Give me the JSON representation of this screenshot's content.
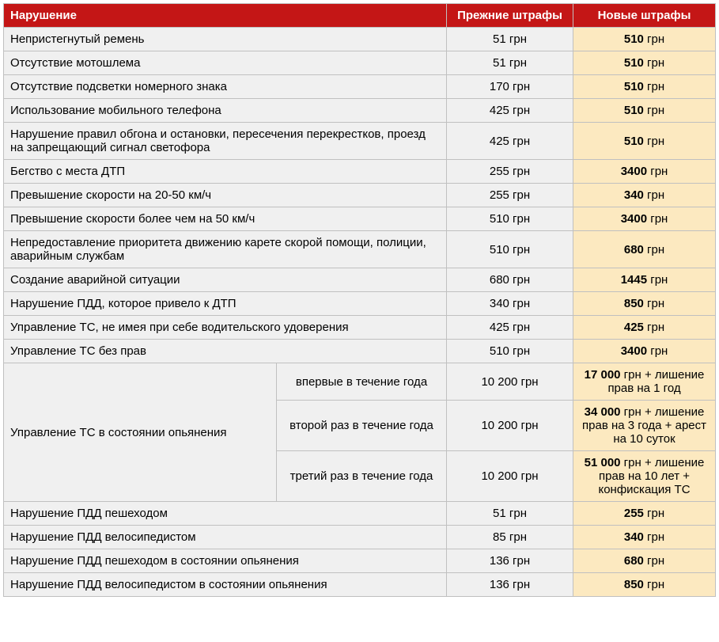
{
  "headers": {
    "violation": "Нарушение",
    "old": "Прежние штрафы",
    "new": "Новые штрафы"
  },
  "currency": "грн",
  "rows_simple": [
    {
      "violation": "Непристегнутый ремень",
      "old": "51",
      "new": "510"
    },
    {
      "violation": "Отсутствие мотошлема",
      "old": "51",
      "new": "510"
    },
    {
      "violation": "Отсутствие подсветки номерного знака",
      "old": "170",
      "new": "510"
    },
    {
      "violation": "Использование мобильного телефона",
      "old": "425",
      "new": "510"
    },
    {
      "violation": "Нарушение правил обгона и остановки, пересечения перекрестков, проезд на запрещающий сигнал светофора",
      "old": "425",
      "new": "510"
    },
    {
      "violation": "Бегство с места ДТП",
      "old": "255",
      "new": "3400"
    },
    {
      "violation": "Превышение скорости на 20-50 км/ч",
      "old": "255",
      "new": "340"
    },
    {
      "violation": "Превышение скорости более чем на 50 км/ч",
      "old": "510",
      "new": "3400"
    },
    {
      "violation": "Непредоставление приоритета движению карете скорой помощи, полиции, аварийным службам",
      "old": "510",
      "new": "680"
    },
    {
      "violation": "Создание аварийной ситуации",
      "old": "680",
      "new": "1445"
    },
    {
      "violation": "Нарушение ПДД, которое привело к ДТП",
      "old": "340",
      "new": "850"
    },
    {
      "violation": "Управление ТС, не имея при себе водительского удоверения",
      "old": "425",
      "new": "425"
    },
    {
      "violation": "Управление ТС без прав",
      "old": "510",
      "new": "3400"
    }
  ],
  "drunk_block": {
    "label": "Управление ТС в состоянии опьянения",
    "rows": [
      {
        "sub": "впервые в течение года",
        "old": "10 200",
        "new_bold": "17 000",
        "new_extra": " грн + лишение прав на 1 год"
      },
      {
        "sub": "второй раз в течение года",
        "old": "10 200",
        "new_bold": "34 000",
        "new_extra": " грн + лишение прав на 3 года + арест на 10 суток"
      },
      {
        "sub": "третий раз в течение года",
        "old": "10 200",
        "new_bold": "51 000",
        "new_extra": " грн + лишение прав на 10 лет + конфискация ТС"
      }
    ]
  },
  "rows_after": [
    {
      "violation": "Нарушение ПДД пешеходом",
      "old": "51",
      "new": "255"
    },
    {
      "violation": "Нарушение ПДД велосипедистом",
      "old": "85",
      "new": "340"
    },
    {
      "violation": "Нарушение ПДД пешеходом в состоянии опьянения",
      "old": "136",
      "new": "680"
    },
    {
      "violation": "Нарушение ПДД велосипедистом в состоянии опьянения",
      "old": "136",
      "new": "850"
    }
  ],
  "colors": {
    "header_bg": "#c41616",
    "header_text": "#ffffff",
    "row_bg": "#f0f0f0",
    "new_bg": "#fce9c0",
    "border": "#c0c0c0"
  }
}
